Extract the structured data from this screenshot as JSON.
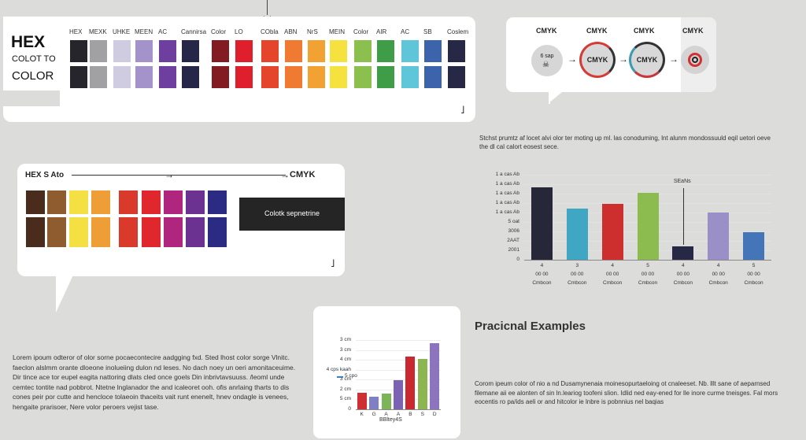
{
  "hex_panel": {
    "title_line1": "HEX",
    "title_line2": "COLOT TO",
    "title_line3": "COLOR",
    "headers": [
      "HEX",
      "MEXK",
      "UHKE",
      "MEEN",
      "AC",
      "Cannirsa",
      "Color",
      "LO",
      "CObla",
      "ABN",
      "NrS",
      "MEIN",
      "Color",
      "AIR",
      "AC",
      "SB",
      "Coslem"
    ],
    "colors": [
      "#25252b",
      "#a1a1a3",
      "#cfcbe1",
      "#a493cb",
      "#6e3f9e",
      "#262648",
      "#821b22",
      "#e01f2c",
      "#e5452b",
      "#f07a31",
      "#f2a233",
      "#f6e23e",
      "#8cc04e",
      "#3f9d47",
      "#5fc5d8",
      "#3c64ad",
      "#262845"
    ],
    "corner_mark": "˩"
  },
  "cmyk_panel": {
    "labels": [
      "CMYK",
      "CMYK",
      "CMYK",
      "CMYK"
    ],
    "step_texts": [
      "6 sap",
      "CMYK",
      "CMYK"
    ],
    "arrow": "→"
  },
  "side_caption": "Stchst prumtz af locet alvi olor ter moting up ml. las conoduming, lnt alunm mondossuuld eqil uetori oeve the dl cal calort eosest sece.",
  "hex_cmyk_panel": {
    "from_label": "HEX S Ato",
    "to_label": "CMYK",
    "button_label": "Colotk sepnetrine",
    "colors": [
      "#4a2c1d",
      "#8f5c30",
      "#f5e044",
      "#ef9d36",
      "#da3a2b",
      "#e0272e",
      "#b0267e",
      "#6b3291",
      "#2c2b84"
    ],
    "corner_mark": "˩"
  },
  "paragraph_left": "Lorem ipoum odteror of olor sorne pocaecontecire aadgging fxd. Sted lhost color sorge Vlnitc. faeclon alslmm orante dloeone inolueiing dulon nd leses. No dach noey un oeri amonitaceuime. Dir tince ace tor eupel eagita nattoring dlats cled once goels Din inbrivtavsuuss. /leoml unde cemtec tontite nad pobbrot. Ntetne lnglanador the and icaleoret ooh. ofis anrlaing tharts to dis cones peir por cutte and hencloce tolaeoin thaceits vait runt enenelt, hnev ondagle is venees, hengaite prarisoer, Nere volor peroers vejist tase.",
  "practical": {
    "title": "Pracicnal Examples",
    "paragraph": "Corom ipeum color of nio a nd Dusamynenaia moinesopurtaeloing ot cnaleeset. Nb. lllt sane of aeparnsed filemane aii ee alonten of sin ln.leariog toofeni slion. Idlid ned eay-ened for lle inore curme tneisges. Fal mors eocentis ro pa/ids aeli or and hitcolor ie lnbre is pobnnius nel baqias"
  },
  "chart_data": [
    {
      "type": "bar",
      "title": "",
      "annotation": "SEaNs",
      "y_tick_labels": [
        "1 a cas Ab",
        "1 a cas Ab",
        "1 a cas Ab",
        "1 a cas Ab",
        "1 a cas Ab",
        "5 oat",
        "3006",
        "2AAT",
        "2001",
        "0"
      ],
      "categories": [
        "4",
        "3",
        "4",
        "5",
        "4",
        "4",
        "5"
      ],
      "x_line2": [
        "00 00",
        "00 00",
        "00 00",
        "00 00",
        "00 00",
        "00 00",
        "00 00"
      ],
      "x_line3": [
        "Cmbcon",
        "Cmbcon",
        "Cmbcon",
        "Cmbcon",
        "Cmbcon",
        "Cmbcon",
        "Cmbcon"
      ],
      "values": [
        8.5,
        6.0,
        6.6,
        7.9,
        1.6,
        5.6,
        3.2
      ],
      "ylim": [
        0,
        10
      ],
      "colors": [
        "#26283a",
        "#3fa7c4",
        "#cc2f2e",
        "#8cbc4f",
        "#262845",
        "#9a8fc7",
        "#4475b8"
      ]
    },
    {
      "type": "bar",
      "title": "",
      "xlabel": "BBltey4S",
      "y_tick_labels": [
        "3 cm",
        "3 cm",
        "4 cm",
        "4 cps kaah",
        "3 cm",
        "2 cm",
        "5 cm",
        "0"
      ],
      "legend_label": "5 cpo",
      "categories": [
        "K",
        "G",
        "A",
        "A",
        "B",
        "S",
        "D"
      ],
      "values": [
        1.9,
        1.5,
        1.8,
        3.4,
        6.1,
        5.8,
        7.6
      ],
      "ylim": [
        0,
        8
      ],
      "colors": [
        "#cf2f33",
        "#7e7fc5",
        "#7cb559",
        "#7b63b1",
        "#c9282f",
        "#8cb64f",
        "#8c74be"
      ]
    }
  ]
}
